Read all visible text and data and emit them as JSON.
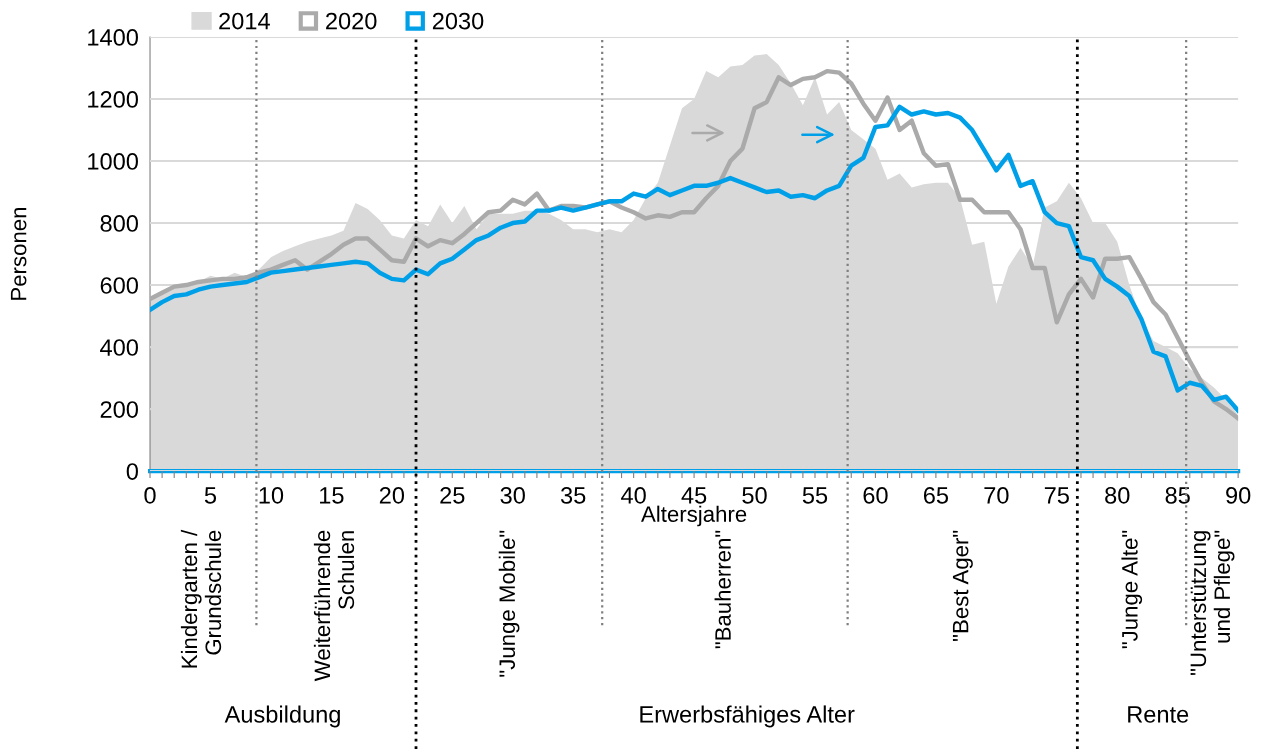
{
  "chart_data": {
    "type": "line",
    "ylabel": "Personen",
    "xlabel": "Altersjahre",
    "x": [
      0,
      1,
      2,
      3,
      4,
      5,
      6,
      7,
      8,
      9,
      10,
      11,
      12,
      13,
      14,
      15,
      16,
      17,
      18,
      19,
      20,
      21,
      22,
      23,
      24,
      25,
      26,
      27,
      28,
      29,
      30,
      31,
      32,
      33,
      34,
      35,
      36,
      37,
      38,
      39,
      40,
      41,
      42,
      43,
      44,
      45,
      46,
      47,
      48,
      49,
      50,
      51,
      52,
      53,
      54,
      55,
      56,
      57,
      58,
      59,
      60,
      61,
      62,
      63,
      64,
      65,
      66,
      67,
      68,
      69,
      70,
      71,
      72,
      73,
      74,
      75,
      76,
      77,
      78,
      79,
      80,
      81,
      82,
      83,
      84,
      85,
      86,
      87,
      88,
      89,
      90
    ],
    "series": [
      {
        "name": "2014",
        "type": "area",
        "color": "#d9d9d9",
        "values": [
          550,
          570,
          590,
          600,
          610,
          630,
          620,
          640,
          625,
          650,
          690,
          710,
          725,
          740,
          750,
          760,
          775,
          865,
          845,
          810,
          760,
          750,
          810,
          790,
          860,
          800,
          855,
          780,
          830,
          830,
          830,
          840,
          840,
          830,
          810,
          780,
          780,
          770,
          780,
          770,
          810,
          880,
          930,
          1050,
          1170,
          1200,
          1290,
          1270,
          1305,
          1310,
          1340,
          1345,
          1310,
          1250,
          1180,
          1270,
          1150,
          1190,
          1100,
          1070,
          1040,
          940,
          960,
          915,
          925,
          930,
          930,
          880,
          730,
          740,
          540,
          660,
          720,
          660,
          850,
          870,
          930,
          880,
          800,
          800,
          740,
          600,
          490,
          420,
          400,
          380,
          330,
          300,
          270,
          230,
          180
        ]
      },
      {
        "name": "2020",
        "color": "#aaaaaa",
        "values": [
          555,
          575,
          595,
          600,
          610,
          615,
          620,
          620,
          625,
          640,
          650,
          665,
          680,
          650,
          675,
          700,
          730,
          750,
          750,
          715,
          680,
          675,
          750,
          725,
          745,
          735,
          765,
          800,
          835,
          840,
          875,
          860,
          895,
          840,
          855,
          855,
          850,
          860,
          870,
          850,
          835,
          815,
          825,
          820,
          835,
          835,
          880,
          920,
          1000,
          1040,
          1170,
          1190,
          1270,
          1245,
          1265,
          1270,
          1290,
          1285,
          1250,
          1185,
          1130,
          1205,
          1100,
          1130,
          1025,
          985,
          990,
          875,
          875,
          835,
          835,
          835,
          780,
          655,
          655,
          480,
          570,
          620,
          560,
          685,
          685,
          690,
          620,
          545,
          505,
          430,
          355,
          285,
          225,
          200,
          170
        ]
      },
      {
        "name": "2030",
        "color": "#00a0e9",
        "values": [
          520,
          545,
          565,
          570,
          585,
          595,
          600,
          605,
          610,
          625,
          640,
          645,
          650,
          655,
          660,
          665,
          670,
          675,
          670,
          640,
          620,
          615,
          650,
          635,
          670,
          685,
          715,
          745,
          760,
          785,
          800,
          805,
          840,
          840,
          850,
          840,
          850,
          860,
          870,
          870,
          895,
          885,
          910,
          890,
          905,
          920,
          920,
          930,
          945,
          930,
          915,
          900,
          905,
          885,
          890,
          880,
          905,
          920,
          985,
          1010,
          1110,
          1115,
          1175,
          1150,
          1160,
          1150,
          1155,
          1140,
          1100,
          1035,
          970,
          1020,
          920,
          935,
          835,
          800,
          790,
          690,
          680,
          620,
          595,
          565,
          490,
          385,
          370,
          260,
          285,
          275,
          230,
          240,
          195
        ]
      }
    ],
    "xlim": [
      0,
      90
    ],
    "xticks": [
      0,
      {
        "value": 1,
        "label": null
      },
      {
        "value": 2,
        "label": null
      },
      {
        "value": 3,
        "label": null
      },
      {
        "value": 4,
        "label": null
      },
      5,
      {
        "value": 6,
        "label": null
      },
      {
        "value": 7,
        "label": null
      },
      {
        "value": 8,
        "label": null
      },
      {
        "value": 9,
        "label": null
      },
      10,
      {
        "value": 11,
        "label": null
      },
      {
        "value": 12,
        "label": null
      },
      {
        "value": 13,
        "label": null
      },
      {
        "value": 14,
        "label": null
      },
      15,
      {
        "value": 16,
        "label": null
      },
      {
        "value": 17,
        "label": null
      },
      {
        "value": 18,
        "label": null
      },
      {
        "value": 19,
        "label": null
      },
      20,
      {
        "value": 21,
        "label": null
      },
      {
        "value": 22,
        "label": null
      },
      {
        "value": 23,
        "label": null
      },
      {
        "value": 24,
        "label": null
      },
      25,
      {
        "value": 26,
        "label": null
      },
      {
        "value": 27,
        "label": null
      },
      {
        "value": 28,
        "label": null
      },
      {
        "value": 29,
        "label": null
      },
      30,
      {
        "value": 31,
        "label": null
      },
      {
        "value": 32,
        "label": null
      },
      {
        "value": 33,
        "label": null
      },
      {
        "value": 34,
        "label": null
      },
      35,
      {
        "value": 36,
        "label": null
      },
      {
        "value": 37,
        "label": null
      },
      {
        "value": 38,
        "label": null
      },
      {
        "value": 39,
        "label": null
      },
      40,
      {
        "value": 41,
        "label": null
      },
      {
        "value": 42,
        "label": null
      },
      {
        "value": 43,
        "label": null
      },
      {
        "value": 44,
        "label": null
      },
      45,
      {
        "value": 46,
        "label": null
      },
      {
        "value": 47,
        "label": null
      },
      {
        "value": 48,
        "label": null
      },
      {
        "value": 49,
        "label": null
      },
      50,
      {
        "value": 51,
        "label": null
      },
      {
        "value": 52,
        "label": null
      },
      {
        "value": 53,
        "label": null
      },
      {
        "value": 54,
        "label": null
      },
      55,
      {
        "value": 56,
        "label": null
      },
      {
        "value": 57,
        "label": null
      },
      {
        "value": 58,
        "label": null
      },
      {
        "value": 59,
        "label": null
      },
      60,
      {
        "value": 61,
        "label": null
      },
      {
        "value": 62,
        "label": null
      },
      {
        "value": 63,
        "label": null
      },
      {
        "value": 64,
        "label": null
      },
      65,
      {
        "value": 66,
        "label": null
      },
      {
        "value": 67,
        "label": null
      },
      {
        "value": 68,
        "label": null
      },
      {
        "value": 69,
        "label": null
      },
      70,
      {
        "value": 71,
        "label": null
      },
      {
        "value": 72,
        "label": null
      },
      {
        "value": 73,
        "label": null
      },
      {
        "value": 74,
        "label": null
      },
      75,
      {
        "value": 76,
        "label": null
      },
      {
        "value": 77,
        "label": null
      },
      {
        "value": 78,
        "label": null
      },
      {
        "value": 79,
        "label": null
      },
      80,
      {
        "value": 81,
        "label": null
      },
      {
        "value": 82,
        "label": null
      },
      {
        "value": 83,
        "label": null
      },
      {
        "value": 84,
        "label": null
      },
      85,
      {
        "value": 86,
        "label": null
      },
      {
        "value": 87,
        "label": null
      },
      {
        "value": 88,
        "label": null
      },
      {
        "value": 89,
        "label": null
      },
      90
    ],
    "ylim": [
      0,
      1400
    ],
    "yticks": [
      0,
      200,
      400,
      600,
      800,
      1000,
      1200,
      1400
    ],
    "grid": "y",
    "legend": "top left",
    "ref_lines": [
      {
        "axis": "x",
        "value": 8.8,
        "color": "#808080",
        "line_style": "dotted"
      },
      {
        "axis": "x",
        "value": 22,
        "color": "#000000",
        "line_style": "dotted"
      },
      {
        "axis": "x",
        "value": 37.4,
        "color": "#808080",
        "line_style": "dotted"
      },
      {
        "axis": "x",
        "value": 57.7,
        "color": "#808080",
        "line_style": "dotted"
      },
      {
        "axis": "x",
        "value": 76.7,
        "color": "#000000",
        "line_style": "dotted"
      },
      {
        "axis": "x",
        "value": 85.7,
        "color": "#808080",
        "line_style": "dotted"
      }
    ],
    "annotations": [
      "Kindergarten /\nGrundschule",
      "Weiterführende\nSchulen",
      "\"Junge Mobile\"",
      "\"Bauherren\"",
      "\"Best Ager\"",
      "\"Junge Alte\"",
      "\"Unterstützung\nund Pflege\"",
      "Ausbildung",
      "Erwerbsfähiges Alter",
      "Rente"
    ]
  }
}
